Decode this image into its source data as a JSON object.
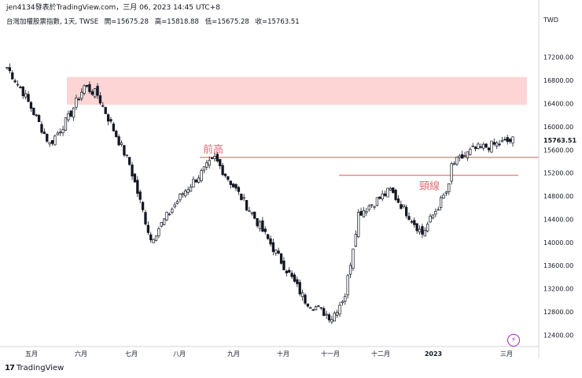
{
  "header": {
    "attribution": "jen4134發表於TradingView.com，三月 06, 2023 14:45 UTC+8",
    "symbol": "台灣加權股票指數, 1天, TWSE",
    "open": "開=15675.28",
    "high": "高=15818.88",
    "low": "低=15675.28",
    "close": "收=15763.51"
  },
  "footer": {
    "brand": "TradingView",
    "logo": "17"
  },
  "icons": {
    "bolt": "lightning-icon"
  },
  "colors": {
    "zone": "#fdd5d5",
    "line": "#ef7f7f",
    "label": "#e06c75",
    "candle": "#131722"
  },
  "chart_data": {
    "type": "candlestick",
    "currency": "TWD",
    "ylim": [
      12200,
      17700
    ],
    "y_ticks": [
      "17200.00",
      "16800.00",
      "16400.00",
      "16000.00",
      "15600.00",
      "15200.00",
      "14800.00",
      "14400.00",
      "14000.00",
      "13600.00",
      "13200.00",
      "12800.00",
      "12400.00"
    ],
    "x_ticks": [
      "五月",
      "六月",
      "七月",
      "八月",
      "九月",
      "十月",
      "十一月",
      "十二月",
      "2023",
      "三月"
    ],
    "last_price": "15763.51",
    "annotations": [
      {
        "type": "zone",
        "y_from": 16380,
        "y_to": 16860
      },
      {
        "type": "line",
        "y": 15470,
        "label": "前高"
      },
      {
        "type": "line",
        "y": 15160,
        "label": "頸線"
      }
    ],
    "segments": [
      {
        "from": 17100,
        "to": 16600,
        "n": 7
      },
      {
        "from": 16600,
        "to": 15700,
        "n": 10
      },
      {
        "from": 15700,
        "to": 16150,
        "n": 7
      },
      {
        "from": 16150,
        "to": 16700,
        "n": 6
      },
      {
        "from": 16700,
        "to": 16550,
        "n": 5
      },
      {
        "from": 16550,
        "to": 15350,
        "n": 12
      },
      {
        "from": 15350,
        "to": 14050,
        "n": 8
      },
      {
        "from": 14050,
        "to": 14850,
        "n": 12
      },
      {
        "from": 14850,
        "to": 15450,
        "n": 12
      },
      {
        "from": 15450,
        "to": 14500,
        "n": 14
      },
      {
        "from": 14500,
        "to": 13000,
        "n": 20
      },
      {
        "from": 13000,
        "to": 12700,
        "n": 10
      },
      {
        "from": 12700,
        "to": 13100,
        "n": 5
      },
      {
        "from": 13100,
        "to": 14500,
        "n": 5
      },
      {
        "from": 14500,
        "to": 14900,
        "n": 12
      },
      {
        "from": 14900,
        "to": 14150,
        "n": 12
      },
      {
        "from": 14150,
        "to": 14950,
        "n": 10
      },
      {
        "from": 15300,
        "to": 15600,
        "n": 9
      },
      {
        "from": 15600,
        "to": 15763,
        "n": 15
      }
    ]
  }
}
